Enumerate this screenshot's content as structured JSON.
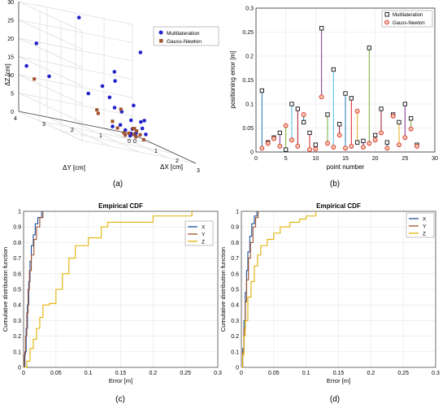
{
  "panels": {
    "a": {
      "label": "(a)"
    },
    "b": {
      "label": "(b)"
    },
    "c": {
      "label": "(c)"
    },
    "d": {
      "label": "(d)"
    }
  },
  "chart_data": [
    {
      "id": "a",
      "type": "scatter",
      "subtype": "3d",
      "xlabel": "ΔX [cm]",
      "ylabel": "ΔY [cm]",
      "zlabel": "ΔZ [cm]",
      "xticks": [
        "0",
        "1",
        "2",
        "3"
      ],
      "yticks": [
        "0",
        "1",
        "2",
        "3",
        "4"
      ],
      "zticks": [
        "0",
        "5",
        "10",
        "15",
        "20",
        "25",
        "30"
      ],
      "grid": true,
      "legend_position": "top-right",
      "colors": {
        "multilateration": "#2222cc",
        "gauss_newton": "#a0522d"
      },
      "series": [
        {
          "name": "Multilateration",
          "marker": "circle",
          "points": [
            [
              0.7,
              2.4,
              30
            ],
            [
              2.8,
              1.8,
              27
            ],
            [
              0.3,
              3.6,
              20
            ],
            [
              1.3,
              1.6,
              18
            ],
            [
              1.6,
              1.8,
              16
            ],
            [
              0.1,
              3.8,
              13
            ],
            [
              0.5,
              3.3,
              12
            ],
            [
              1.0,
              1.8,
              13
            ],
            [
              0.2,
              1.7,
              9
            ],
            [
              0.8,
              1.4,
              10
            ],
            [
              1.4,
              1.0,
              10
            ],
            [
              0.5,
              1.0,
              7
            ],
            [
              0.3,
              0.6,
              6
            ],
            [
              0.8,
              0.3,
              5
            ],
            [
              1.1,
              0.4,
              6
            ],
            [
              0.2,
              0.2,
              4
            ],
            [
              0.6,
              0.1,
              3
            ],
            [
              0.1,
              0.5,
              2
            ],
            [
              0.4,
              0.3,
              2
            ],
            [
              0.9,
              0.2,
              2
            ],
            [
              0.3,
              0.1,
              1
            ],
            [
              0.2,
              0.4,
              1
            ],
            [
              0.6,
              0.5,
              1
            ],
            [
              0.0,
              0.7,
              1
            ],
            [
              0.4,
              0.2,
              0.5
            ],
            [
              0.7,
              0.6,
              0.5
            ]
          ]
        },
        {
          "name": "Gauss-Newton",
          "marker": "square",
          "points": [
            [
              0.2,
              3.6,
              10
            ],
            [
              1.2,
              1.3,
              8
            ],
            [
              0.8,
              1.8,
              5
            ],
            [
              0.2,
              1.4,
              5
            ],
            [
              0.4,
              1.0,
              3
            ],
            [
              0.9,
              0.6,
              3
            ],
            [
              0.3,
              0.2,
              2
            ],
            [
              0.6,
              0.3,
              2
            ],
            [
              0.1,
              0.6,
              1
            ],
            [
              0.5,
              0.1,
              1
            ],
            [
              0.7,
              0.4,
              0.5
            ],
            [
              0.4,
              0.6,
              0.5
            ],
            [
              0.2,
              0.1,
              0.3
            ],
            [
              0.8,
              0.2,
              0.3
            ],
            [
              0.1,
              0.2,
              0.2
            ],
            [
              0.6,
              0.7,
              0.2
            ]
          ]
        }
      ]
    },
    {
      "id": "b",
      "type": "scatter",
      "subtype": "stem",
      "xlabel": "point number",
      "ylabel": "positioning error [m]",
      "xlim": [
        0,
        30
      ],
      "ylim": [
        0,
        0.3
      ],
      "xticks": [
        "0",
        "5",
        "10",
        "15",
        "20",
        "25",
        "30"
      ],
      "yticks": [
        "0",
        "0.05",
        "0.1",
        "0.15",
        "0.2",
        "0.25",
        "0.3"
      ],
      "grid": true,
      "legend_position": "top-right",
      "x": [
        1,
        2,
        3,
        4,
        5,
        6,
        7,
        8,
        9,
        10,
        11,
        12,
        13,
        14,
        15,
        16,
        17,
        18,
        19,
        20,
        21,
        22,
        23,
        24,
        25,
        26,
        27
      ],
      "series": [
        {
          "name": "Multilateration",
          "marker": "square",
          "values": [
            0.128,
            0.02,
            0.03,
            0.04,
            0.005,
            0.1,
            0.09,
            0.062,
            0.04,
            0.015,
            0.258,
            0.078,
            0.172,
            0.058,
            0.122,
            0.112,
            0.02,
            0.023,
            0.217,
            0.035,
            0.09,
            0.02,
            0.078,
            0.062,
            0.1,
            0.07,
            0.015
          ]
        },
        {
          "name": "Gauss-Newton",
          "marker": "circle",
          "values": [
            0.008,
            0.018,
            0.028,
            0.012,
            0.055,
            0.025,
            0.012,
            0.078,
            0.005,
            0.006,
            0.115,
            0.018,
            0.01,
            0.035,
            0.008,
            0.012,
            0.085,
            0.01,
            0.018,
            0.025,
            0.04,
            0.008,
            0.075,
            0.015,
            0.03,
            0.048,
            0.012
          ]
        }
      ],
      "stem_colors": [
        "#1f77b4",
        "#d62728",
        "#e6a817",
        "#7e2f8e",
        "#77ac30",
        "#4dbeee",
        "#a2142f"
      ]
    },
    {
      "id": "c",
      "type": "line",
      "subtype": "step",
      "title": "Empirical CDF",
      "xlabel": "Error [m]",
      "ylabel": "Cumulative distribution function",
      "xlim": [
        0,
        0.3
      ],
      "ylim": [
        0,
        1
      ],
      "xticks": [
        "0",
        "0.05",
        "0.1",
        "0.15",
        "0.2",
        "0.25",
        "0.3"
      ],
      "yticks": [
        "0",
        "0.1",
        "0.2",
        "0.3",
        "0.4",
        "0.5",
        "0.6",
        "0.7",
        "0.8",
        "0.9",
        "1"
      ],
      "grid": true,
      "legend_position": "top-right",
      "series": [
        {
          "name": "X",
          "color": "#1f4e9a",
          "points": [
            [
              0,
              0
            ],
            [
              0.002,
              0.1
            ],
            [
              0.004,
              0.25
            ],
            [
              0.006,
              0.4
            ],
            [
              0.008,
              0.55
            ],
            [
              0.01,
              0.68
            ],
            [
              0.012,
              0.78
            ],
            [
              0.015,
              0.85
            ],
            [
              0.018,
              0.92
            ],
            [
              0.022,
              0.96
            ],
            [
              0.028,
              1.0
            ]
          ]
        },
        {
          "name": "Y",
          "color": "#a0522d",
          "points": [
            [
              0,
              0
            ],
            [
              0.001,
              0.08
            ],
            [
              0.003,
              0.2
            ],
            [
              0.005,
              0.35
            ],
            [
              0.007,
              0.5
            ],
            [
              0.009,
              0.62
            ],
            [
              0.012,
              0.72
            ],
            [
              0.016,
              0.82
            ],
            [
              0.02,
              0.9
            ],
            [
              0.025,
              0.96
            ],
            [
              0.03,
              1.0
            ]
          ]
        },
        {
          "name": "Z",
          "color": "#e0b000",
          "points": [
            [
              0,
              0
            ],
            [
              0.005,
              0.04
            ],
            [
              0.01,
              0.12
            ],
            [
              0.015,
              0.18
            ],
            [
              0.02,
              0.25
            ],
            [
              0.025,
              0.32
            ],
            [
              0.03,
              0.4
            ],
            [
              0.04,
              0.41
            ],
            [
              0.05,
              0.5
            ],
            [
              0.06,
              0.6
            ],
            [
              0.07,
              0.7
            ],
            [
              0.08,
              0.78
            ],
            [
              0.1,
              0.83
            ],
            [
              0.12,
              0.9
            ],
            [
              0.13,
              0.93
            ],
            [
              0.2,
              0.97
            ],
            [
              0.26,
              1.0
            ]
          ]
        }
      ]
    },
    {
      "id": "d",
      "type": "line",
      "subtype": "step",
      "title": "Empirical CDF",
      "xlabel": "Error [m]",
      "ylabel": "Cumulative distribution function",
      "xlim": [
        0,
        0.3
      ],
      "ylim": [
        0,
        1
      ],
      "xticks": [
        "0",
        "0.05",
        "0.1",
        "0.15",
        "0.2",
        "0.25",
        "0.3"
      ],
      "yticks": [
        "0",
        "0.1",
        "0.2",
        "0.3",
        "0.4",
        "0.5",
        "0.6",
        "0.7",
        "0.8",
        "0.9",
        "1"
      ],
      "grid": true,
      "legend_position": "top-right",
      "series": [
        {
          "name": "X",
          "color": "#1f4e9a",
          "points": [
            [
              0,
              0
            ],
            [
              0.002,
              0.12
            ],
            [
              0.004,
              0.3
            ],
            [
              0.006,
              0.48
            ],
            [
              0.008,
              0.62
            ],
            [
              0.01,
              0.74
            ],
            [
              0.013,
              0.84
            ],
            [
              0.016,
              0.92
            ],
            [
              0.02,
              0.97
            ],
            [
              0.024,
              1.0
            ]
          ]
        },
        {
          "name": "Y",
          "color": "#a0522d",
          "points": [
            [
              0,
              0
            ],
            [
              0.002,
              0.1
            ],
            [
              0.004,
              0.25
            ],
            [
              0.006,
              0.42
            ],
            [
              0.008,
              0.56
            ],
            [
              0.011,
              0.7
            ],
            [
              0.014,
              0.8
            ],
            [
              0.018,
              0.9
            ],
            [
              0.022,
              0.96
            ],
            [
              0.026,
              1.0
            ]
          ]
        },
        {
          "name": "Z",
          "color": "#e0b000",
          "points": [
            [
              0,
              0
            ],
            [
              0.002,
              0.08
            ],
            [
              0.004,
              0.2
            ],
            [
              0.006,
              0.3
            ],
            [
              0.01,
              0.45
            ],
            [
              0.015,
              0.55
            ],
            [
              0.02,
              0.65
            ],
            [
              0.025,
              0.72
            ],
            [
              0.03,
              0.78
            ],
            [
              0.04,
              0.82
            ],
            [
              0.05,
              0.86
            ],
            [
              0.06,
              0.9
            ],
            [
              0.075,
              0.93
            ],
            [
              0.09,
              0.95
            ],
            [
              0.1,
              0.97
            ],
            [
              0.115,
              1.0
            ]
          ]
        }
      ]
    }
  ]
}
